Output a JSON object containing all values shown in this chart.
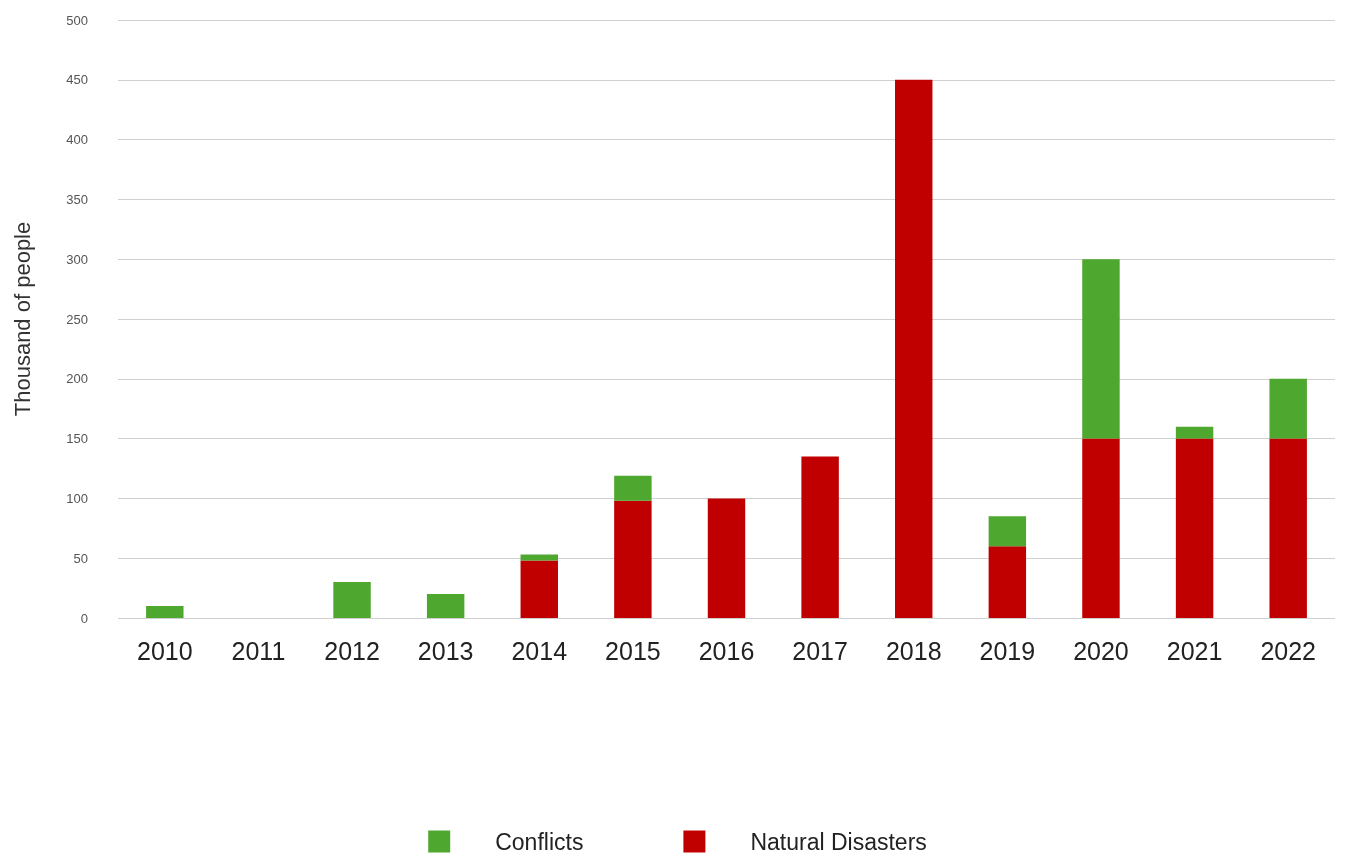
{
  "chart_data": {
    "type": "bar",
    "ylabel": "Thousand of people",
    "stacked": true,
    "categories": [
      "2010",
      "2011",
      "2012",
      "2013",
      "2014",
      "2015",
      "2016",
      "2017",
      "2018",
      "2019",
      "2020",
      "2021",
      "2022"
    ],
    "series": [
      {
        "name": "Natural Disasters",
        "color": "#c00000",
        "values": [
          0,
          0,
          0,
          0,
          48,
          98,
          100,
          135,
          450,
          60,
          150,
          150,
          150
        ]
      },
      {
        "name": "Conflicts",
        "color": "#4ea72e",
        "values": [
          10,
          0,
          30,
          20,
          5,
          21,
          0,
          0,
          0,
          25,
          150,
          10,
          50
        ]
      }
    ],
    "ylim": [
      0,
      500
    ],
    "yticks": [
      0,
      50,
      100,
      150,
      200,
      250,
      300,
      350,
      400,
      450,
      500
    ],
    "grid": "y",
    "legend": "bottom"
  }
}
